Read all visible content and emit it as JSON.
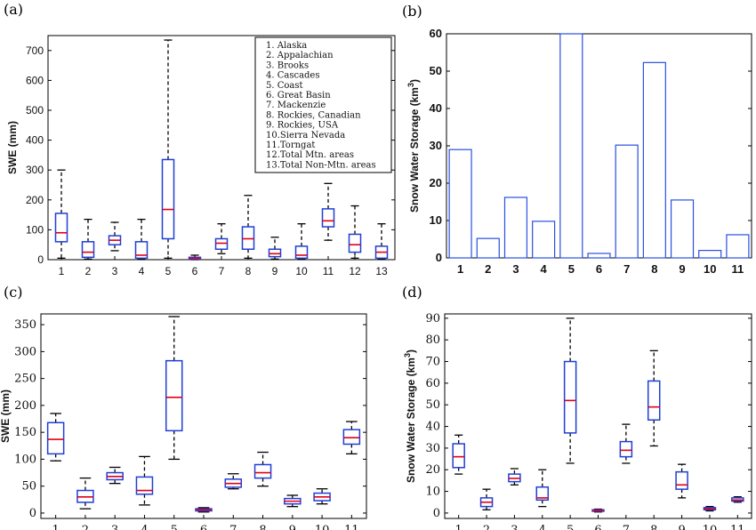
{
  "chart_data": [
    {
      "panel": "(a)",
      "type": "boxplot",
      "ylabel": "SWE (mm)",
      "ylim": [
        0,
        750
      ],
      "yticks": [
        0,
        100,
        200,
        300,
        400,
        500,
        600,
        700
      ],
      "categories": [
        "1",
        "2",
        "3",
        "4",
        "5",
        "6",
        "7",
        "8",
        "9",
        "10",
        "11",
        "12",
        "13"
      ],
      "boxes": [
        {
          "low": 5,
          "q1": 60,
          "median": 90,
          "q3": 155,
          "high": 300
        },
        {
          "low": 2,
          "q1": 8,
          "median": 25,
          "q3": 60,
          "high": 135
        },
        {
          "low": 30,
          "q1": 50,
          "median": 65,
          "q3": 80,
          "high": 125
        },
        {
          "low": 2,
          "q1": 5,
          "median": 15,
          "q3": 60,
          "high": 135
        },
        {
          "low": 5,
          "q1": 70,
          "median": 168,
          "q3": 335,
          "high": 735
        },
        {
          "low": 0,
          "q1": 2,
          "median": 5,
          "q3": 8,
          "high": 15
        },
        {
          "low": 20,
          "q1": 35,
          "median": 55,
          "q3": 70,
          "high": 120
        },
        {
          "low": 5,
          "q1": 35,
          "median": 70,
          "q3": 110,
          "high": 215
        },
        {
          "low": 2,
          "q1": 10,
          "median": 20,
          "q3": 35,
          "high": 75
        },
        {
          "low": 2,
          "q1": 5,
          "median": 15,
          "q3": 45,
          "high": 120
        },
        {
          "low": 65,
          "q1": 110,
          "median": 130,
          "q3": 170,
          "high": 255
        },
        {
          "low": 5,
          "q1": 25,
          "median": 50,
          "q3": 85,
          "high": 180
        },
        {
          "low": 2,
          "q1": 5,
          "median": 25,
          "q3": 45,
          "high": 120
        }
      ],
      "legend": [
        "1. Alaska",
        "2. Appalachian",
        "3. Brooks",
        "4. Cascades",
        "5. Coast",
        "6. Great Basin",
        "7. Mackenzie",
        "8. Rockies, Canadian",
        "9. Rockies, USA",
        "10.Sierra Nevada",
        "11.Torngat",
        "12.Total Mtn. areas",
        "13.Total Non-Mtn. areas"
      ]
    },
    {
      "panel": "(b)",
      "type": "bar",
      "ylabel": "Snow Water Storage (km",
      "ylabel_sup": "3",
      "ylabel_close": ")",
      "ylim": [
        0,
        60
      ],
      "yticks": [
        0,
        10,
        20,
        30,
        40,
        50,
        60
      ],
      "categories": [
        "1",
        "2",
        "3",
        "4",
        "5",
        "6",
        "7",
        "8",
        "9",
        "10",
        "11"
      ],
      "values": [
        29,
        5.2,
        16.2,
        9.8,
        60,
        1.2,
        30.2,
        52.3,
        15.5,
        2.0,
        6.2
      ]
    },
    {
      "panel": "(c)",
      "type": "boxplot",
      "ylabel": "SWE (mm)",
      "ylim": [
        -10,
        370
      ],
      "yticks": [
        0,
        50,
        100,
        150,
        200,
        250,
        300,
        350
      ],
      "categories": [
        "1",
        "2",
        "3",
        "4",
        "5",
        "6",
        "7",
        "8",
        "9",
        "10",
        "11"
      ],
      "boxes": [
        {
          "low": 97,
          "q1": 110,
          "median": 137,
          "q3": 168,
          "high": 185
        },
        {
          "low": 8,
          "q1": 20,
          "median": 30,
          "q3": 42,
          "high": 65
        },
        {
          "low": 55,
          "q1": 62,
          "median": 68,
          "q3": 75,
          "high": 85
        },
        {
          "low": 15,
          "q1": 35,
          "median": 42,
          "q3": 67,
          "high": 105
        },
        {
          "low": 100,
          "q1": 153,
          "median": 215,
          "q3": 283,
          "high": 365
        },
        {
          "low": 2,
          "q1": 4,
          "median": 6,
          "q3": 8,
          "high": 10
        },
        {
          "low": 45,
          "q1": 48,
          "median": 55,
          "q3": 63,
          "high": 73
        },
        {
          "low": 50,
          "q1": 65,
          "median": 75,
          "q3": 90,
          "high": 113
        },
        {
          "low": 12,
          "q1": 17,
          "median": 22,
          "q3": 27,
          "high": 33
        },
        {
          "low": 17,
          "q1": 23,
          "median": 30,
          "q3": 37,
          "high": 45
        },
        {
          "low": 110,
          "q1": 128,
          "median": 140,
          "q3": 155,
          "high": 170
        }
      ]
    },
    {
      "panel": "(d)",
      "type": "boxplot",
      "ylabel": "Snow Water Storage (km",
      "ylabel_sup": "3",
      "ylabel_close": ")",
      "ylim": [
        -2.5,
        92
      ],
      "yticks": [
        0,
        10,
        20,
        30,
        40,
        50,
        60,
        70,
        80,
        90
      ],
      "categories": [
        "1",
        "2",
        "3",
        "4",
        "5",
        "6",
        "7",
        "8",
        "9",
        "10",
        "11"
      ],
      "boxes": [
        {
          "low": 18,
          "q1": 21,
          "median": 26,
          "q3": 32,
          "high": 36
        },
        {
          "low": 1.5,
          "q1": 3,
          "median": 5,
          "q3": 7,
          "high": 11
        },
        {
          "low": 13,
          "q1": 14.5,
          "median": 16,
          "q3": 18,
          "high": 20.5
        },
        {
          "low": 3,
          "q1": 6,
          "median": 7,
          "q3": 12,
          "high": 20
        },
        {
          "low": 23,
          "q1": 37,
          "median": 52,
          "q3": 70,
          "high": 90
        },
        {
          "low": 0.5,
          "q1": 0.8,
          "median": 1.2,
          "q3": 1.5,
          "high": 1.8
        },
        {
          "low": 23,
          "q1": 26,
          "median": 29,
          "q3": 33,
          "high": 41
        },
        {
          "low": 31,
          "q1": 43,
          "median": 49,
          "q3": 61,
          "high": 75
        },
        {
          "low": 7,
          "q1": 11,
          "median": 13,
          "q3": 19,
          "high": 22.5
        },
        {
          "low": 1,
          "q1": 1.5,
          "median": 2,
          "q3": 2.5,
          "high": 3
        },
        {
          "low": 5,
          "q1": 5.5,
          "median": 6,
          "q3": 7,
          "high": 7.5
        }
      ]
    }
  ],
  "colors": {
    "box": "#1f3fd6",
    "median": "#e0001a",
    "bar": "#2a4fe0",
    "whisker": "#000000"
  }
}
